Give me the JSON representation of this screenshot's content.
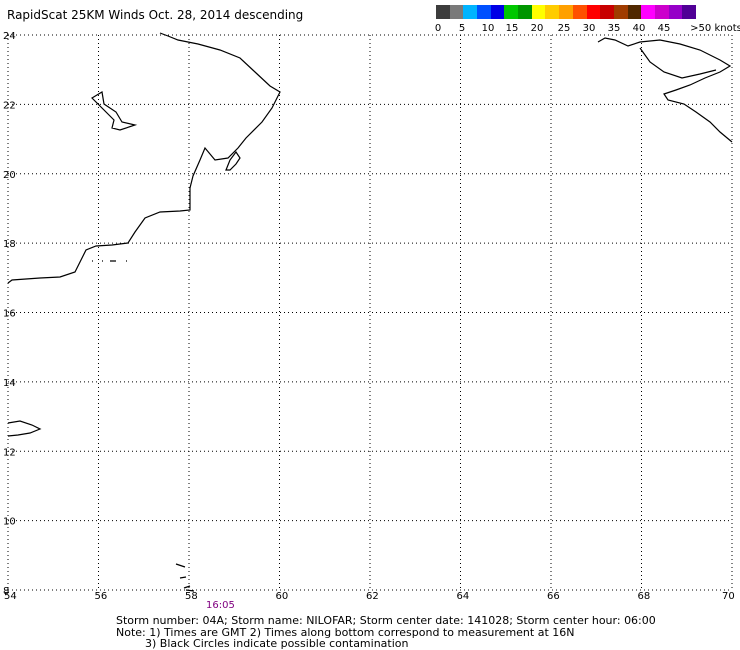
{
  "title": "RapidScat 25KM Winds Oct. 28, 2014 descending",
  "legend": {
    "colors": [
      "#3c3c3c",
      "#7a7a7a",
      "#00b4ff",
      "#0050ff",
      "#0000e6",
      "#00c800",
      "#009600",
      "#ffff00",
      "#ffcc00",
      "#ffa000",
      "#ff5000",
      "#ff0000",
      "#c80000",
      "#a03c00",
      "#502800",
      "#ff00ff",
      "#cc00cc",
      "#9600c8",
      "#500096"
    ],
    "labels": [
      "0",
      "5",
      "10",
      "15",
      "20",
      "25",
      "30",
      "35",
      "40",
      "45",
      ">50 knots"
    ]
  },
  "axes": {
    "x_ticks": [
      "54",
      "56",
      "58",
      "60",
      "62",
      "64",
      "66",
      "68",
      "70"
    ],
    "y_ticks": [
      "8",
      "10",
      "12",
      "14",
      "16",
      "18",
      "20",
      "22",
      "24"
    ]
  },
  "time_label": "16:05",
  "footer": {
    "line1": "Storm number: 04A;  Storm name: NILOFAR;  Storm center date: 141028;  Storm center hour: 06:00",
    "line2": "Note: 1) Times are GMT  2) Times along bottom correspond to measurement at 16N",
    "line3": "3) Black Circles indicate possible contamination"
  }
}
